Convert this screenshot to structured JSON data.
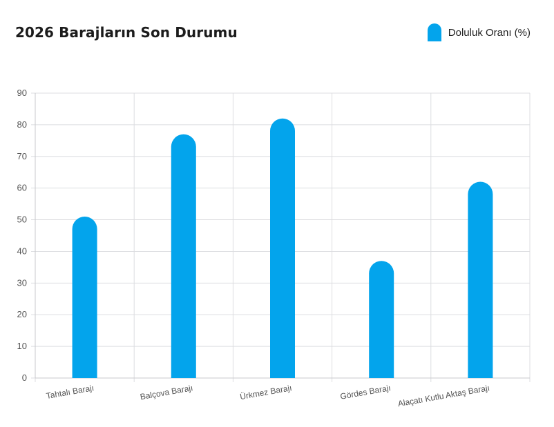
{
  "chart_data": {
    "type": "bar",
    "title": "2026 Barajların Son Durumu",
    "categories": [
      "Tahtalı Barajı",
      "Balçova Barajı",
      "Ürkmez Barajı",
      "Gördes Barajı",
      "Alaçatı Kutlu Aktaş Barajı"
    ],
    "series": [
      {
        "name": "Doluluk Oranı (%)",
        "values": [
          51,
          77,
          82,
          37,
          62
        ],
        "color": "#03a4ec"
      }
    ],
    "xlabel": "",
    "ylabel": "",
    "ylim": [
      0,
      90
    ],
    "yticks": [
      0,
      10,
      20,
      30,
      40,
      50,
      60,
      70,
      80,
      90
    ],
    "grid": true,
    "legend_position": "top-right",
    "bar_style": "rounded-top"
  }
}
